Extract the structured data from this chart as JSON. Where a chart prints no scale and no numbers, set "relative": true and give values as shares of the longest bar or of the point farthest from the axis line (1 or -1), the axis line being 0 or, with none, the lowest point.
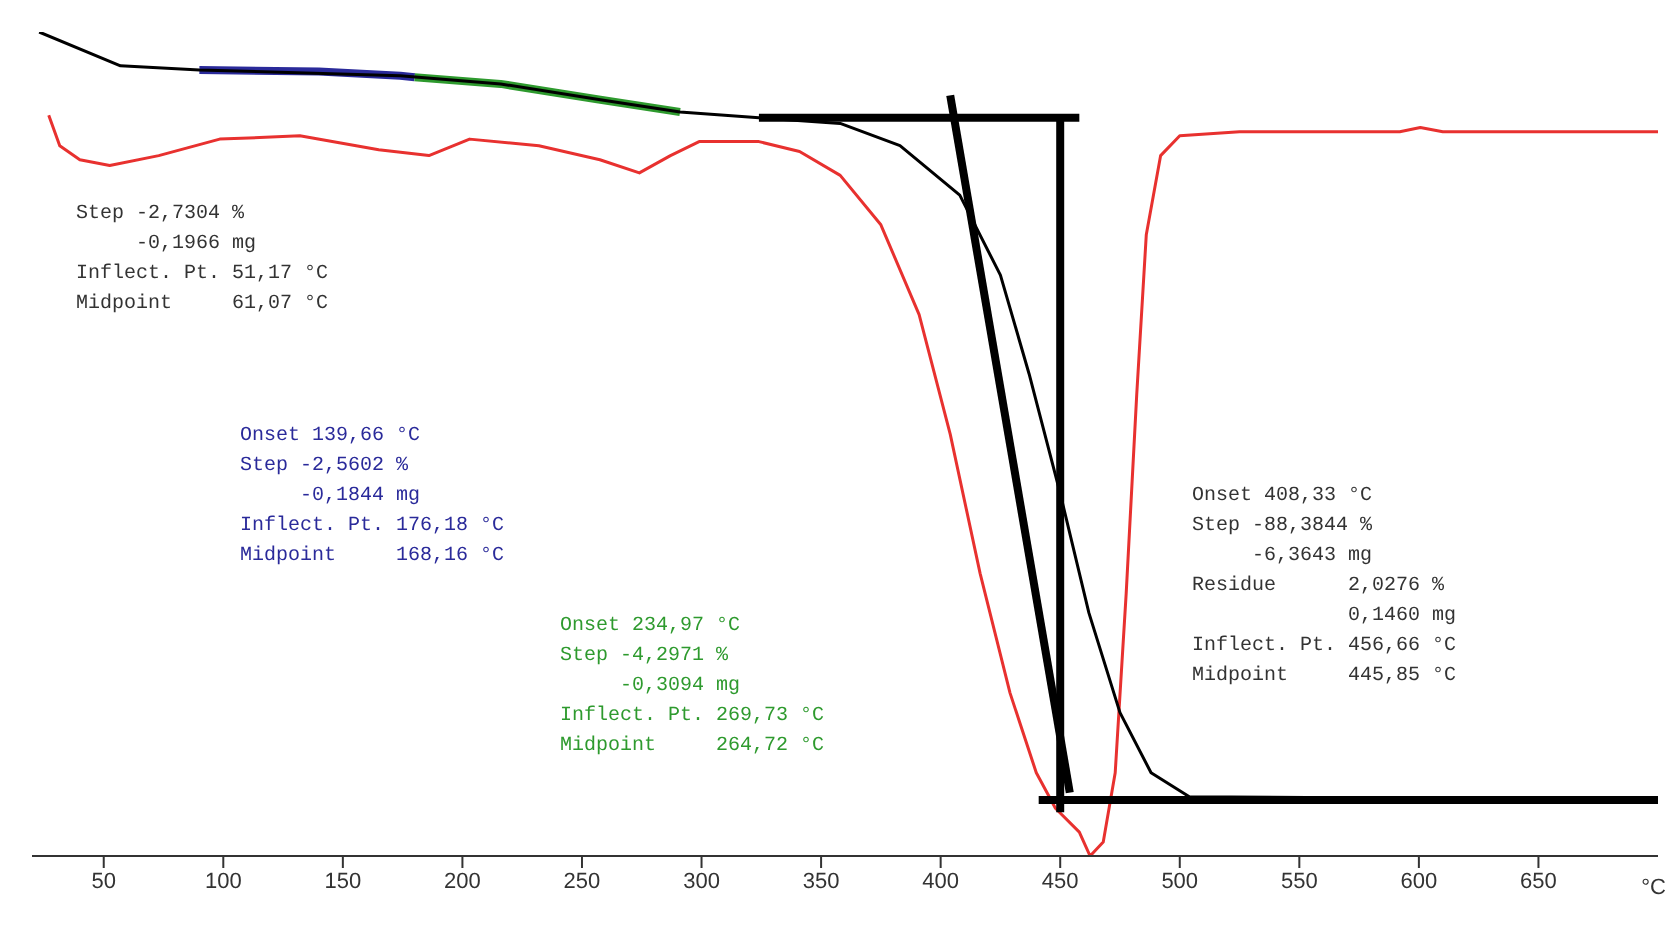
{
  "chart_data": {
    "type": "line",
    "relative": true,
    "xlabel": "°C",
    "xlim": [
      20,
      700
    ],
    "xticks": [
      50,
      100,
      150,
      200,
      250,
      300,
      350,
      400,
      450,
      500,
      550,
      600,
      650
    ],
    "series": [
      {
        "color": "#e8312f",
        "x": [
          27,
          31.6,
          40,
          52.5,
          73,
          98.5,
          132,
          165,
          186,
          203,
          232,
          257.5,
          274,
          287,
          299,
          324,
          341,
          358,
          375,
          391,
          404,
          416.5,
          429,
          440,
          448,
          458,
          462.5,
          468,
          473,
          477.6,
          482,
          486,
          492,
          500,
          525,
          592,
          600.6,
          610,
          700
        ],
        "values": [
          0.899,
          0.862,
          0.845,
          0.838,
          0.85,
          0.87,
          0.874,
          0.857,
          0.85,
          0.87,
          0.862,
          0.845,
          0.829,
          0.85,
          0.867,
          0.867,
          0.855,
          0.826,
          0.766,
          0.657,
          0.512,
          0.343,
          0.198,
          0.101,
          0.058,
          0.029,
          0,
          0.017,
          0.101,
          0.319,
          0.56,
          0.754,
          0.85,
          0.874,
          0.879,
          0.879,
          0.884,
          0.879,
          0.879
        ]
      },
      {
        "color": "#2a2a9a",
        "x": [
          90,
          140,
          174,
          180
        ],
        "values": [
          0.954,
          0.952,
          0.947,
          0.945
        ]
      },
      {
        "color": "#2e9a2e",
        "x": [
          180,
          216,
          257,
          291
        ],
        "values": [
          0.945,
          0.937,
          0.918,
          0.903
        ]
      },
      {
        "color": "#000000",
        "x": [
          23,
          57,
          90,
          174,
          216,
          257,
          291,
          324,
          358,
          383,
          408,
          425,
          437,
          450,
          462,
          475,
          488,
          504,
          700
        ],
        "values": [
          1,
          0.959,
          0.954,
          0.947,
          0.937,
          0.918,
          0.903,
          0.896,
          0.889,
          0.862,
          0.802,
          0.705,
          0.585,
          0.44,
          0.295,
          0.174,
          0.101,
          0.072,
          0.068
        ]
      },
      {
        "color": "#000000",
        "x": [
          324,
          458
        ],
        "values": [
          0.896,
          0.896
        ]
      },
      {
        "color": "#000000",
        "x": [
          404,
          454
        ],
        "values": [
          0.923,
          0.077
        ]
      },
      {
        "color": "#000000",
        "x": [
          450,
          450
        ],
        "values": [
          0.899,
          0.053
        ]
      },
      {
        "color": "#000000",
        "x": [
          441,
          700
        ],
        "values": [
          0.068,
          0.068
        ]
      }
    ],
    "annotations": [
      "Step -2,7304 %\n     -0,1966 mg\nInflect. Pt. 51,17 °C\nMidpoint     61,07 °C",
      "Onset 139,66 °C\nStep -2,5602 %\n     -0,1844 mg\nInflect. Pt. 176,18 °C\nMidpoint     168,16 °C",
      "Onset 234,97 °C\nStep -4,2971 %\n     -0,3094 mg\nInflect. Pt. 269,73 °C\nMidpoint     264,72 °C",
      "Onset 408,33 °C\nStep -88,3844 %\n     -6,3643 mg\nResidue      2,0276 %\n             0,1460 mg\nInflect. Pt. 456,66 °C\nMidpoint     445,85 °C"
    ]
  }
}
